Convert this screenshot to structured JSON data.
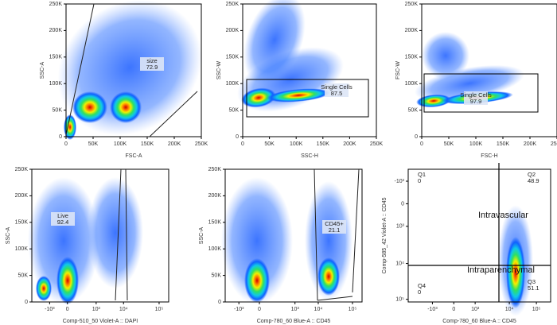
{
  "panels": [
    {
      "x_label": "FSC-A",
      "y_label": "SSC-A",
      "x_ticks": [
        "0",
        "50K",
        "100K",
        "150K",
        "200K",
        "250K"
      ],
      "y_ticks": [
        "0",
        "50K",
        "100K",
        "150K",
        "200K",
        "250K"
      ],
      "gates": [
        {
          "name": "size",
          "value": "72.9"
        }
      ]
    },
    {
      "x_label": "SSC-H",
      "y_label": "SSC-W",
      "x_ticks": [
        "0",
        "50K",
        "100K",
        "150K",
        "200K",
        "250K"
      ],
      "y_ticks": [
        "0",
        "50K",
        "100K",
        "150K",
        "200K",
        "250K"
      ],
      "gates": [
        {
          "name": "Single Cells",
          "value": "87.5"
        }
      ]
    },
    {
      "x_label": "FSC-H",
      "y_label": "FSC-W",
      "x_ticks": [
        "0",
        "50K",
        "100K",
        "150K",
        "200K",
        "250K"
      ],
      "y_ticks": [
        "0",
        "50K",
        "100K",
        "150K",
        "200K",
        "250K"
      ],
      "gates": [
        {
          "name": "Single Cells",
          "value": "97.9"
        }
      ]
    },
    {
      "x_label": "Comp-510_50 Violet-A :: DAPI",
      "y_label": "SSC-A",
      "x_ticks": [
        "-10³",
        "0",
        "10³",
        "10⁴",
        "10⁵"
      ],
      "y_ticks": [
        "0",
        "50K",
        "100K",
        "150K",
        "200K",
        "250K"
      ],
      "gates": [
        {
          "name": "Live",
          "value": "92.4"
        }
      ]
    },
    {
      "x_label": "Comp-780_60 Blue-A :: CD45",
      "y_label": "SSC-A",
      "x_ticks": [
        "-10³",
        "0",
        "10³",
        "10⁴",
        "10⁵"
      ],
      "y_ticks": [
        "0",
        "50K",
        "100K",
        "150K",
        "200K",
        "250K"
      ],
      "gates": [
        {
          "name": "CD45+",
          "value": "21.1"
        }
      ]
    },
    {
      "x_label": "Comp-780_60 Blue-A :: CD45",
      "y_label": "Comp-585_42 Violet-A :: CD45",
      "x_ticks": [
        "-10³",
        "0",
        "10³",
        "10⁴",
        "10⁵"
      ],
      "y_ticks": [
        "-10³",
        "0",
        "10³",
        "10⁴",
        "10⁵"
      ],
      "gates": [
        {
          "name": "Q1",
          "value": "0"
        },
        {
          "name": "Q2",
          "value": "48.9"
        },
        {
          "name": "Q4",
          "value": "0"
        },
        {
          "name": "Q3",
          "value": "51.1"
        }
      ],
      "annotations": [
        "Intravascular",
        "Intraparenchymal"
      ]
    }
  ]
}
